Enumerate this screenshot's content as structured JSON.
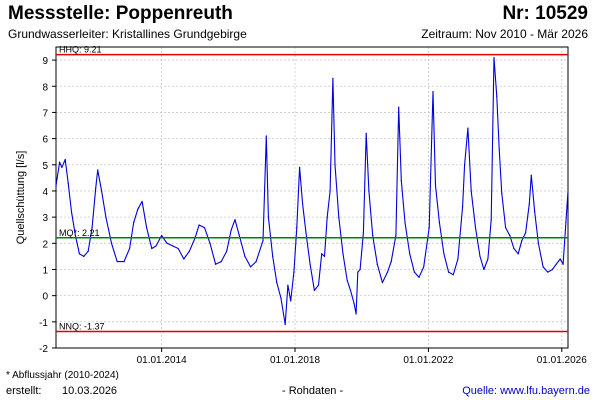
{
  "header": {
    "title": "Messstelle: Poppenreuth",
    "number": "Nr: 10529",
    "aquifer": "Grundwasserleiter: Kristallines Grundgebirge",
    "period": "Zeitraum: Nov 2010 - Mär 2026"
  },
  "footer": {
    "footnote": "* Abflussjahr (2010-2024)",
    "created_label": "erstellt:",
    "created_date": "10.03.2026",
    "rawdata": "- Rohdaten -",
    "source": "Quelle: www.lfu.bayern.de"
  },
  "colors": {
    "series": "#0000dd",
    "hhq_nnq": "#e00000",
    "mq": "#008000",
    "grid": "#c8c8c8"
  },
  "chart_data": {
    "type": "line",
    "title": "Messstelle: Poppenreuth",
    "xlabel": "",
    "ylabel": "Quellschüttung [l/s]",
    "xlim": [
      "2010-11-01",
      "2026-03-10"
    ],
    "ylim": [
      -2,
      9.5
    ],
    "yticks": [
      -2,
      -1,
      0,
      1,
      2,
      3,
      4,
      5,
      6,
      7,
      8,
      9
    ],
    "xticks": [
      "2014-01-01",
      "2018-01-01",
      "2022-01-01",
      "2026-01-01"
    ],
    "xtick_labels": [
      "01.01.2014",
      "01.01.2018",
      "01.01.2022",
      "01.01.2026"
    ],
    "grid": true,
    "reference_lines": [
      {
        "label": "HHQ: 9.21",
        "value": 9.21,
        "color": "#e00000"
      },
      {
        "label": "MQ*: 2.21",
        "value": 2.21,
        "color": "#008000"
      },
      {
        "label": "NNQ: -1.37",
        "value": -1.37,
        "color": "#e00000"
      }
    ],
    "series": [
      {
        "color": "#0000dd",
        "points": [
          [
            "2010-11-01",
            4.2
          ],
          [
            "2010-12-10",
            5.1
          ],
          [
            "2011-01-05",
            4.9
          ],
          [
            "2011-02-10",
            5.2
          ],
          [
            "2011-03-15",
            4.3
          ],
          [
            "2011-04-20",
            3.2
          ],
          [
            "2011-06-01",
            2.3
          ],
          [
            "2011-07-15",
            1.6
          ],
          [
            "2011-09-01",
            1.5
          ],
          [
            "2011-10-20",
            1.7
          ],
          [
            "2011-12-01",
            2.6
          ],
          [
            "2012-01-10",
            4.1
          ],
          [
            "2012-02-01",
            4.8
          ],
          [
            "2012-03-15",
            4.0
          ],
          [
            "2012-05-01",
            3.0
          ],
          [
            "2012-07-01",
            2.0
          ],
          [
            "2012-09-01",
            1.3
          ],
          [
            "2012-11-15",
            1.3
          ],
          [
            "2013-01-15",
            1.8
          ],
          [
            "2013-03-01",
            2.8
          ],
          [
            "2013-04-15",
            3.3
          ],
          [
            "2013-06-01",
            3.6
          ],
          [
            "2013-07-20",
            2.6
          ],
          [
            "2013-09-15",
            1.8
          ],
          [
            "2013-11-01",
            1.9
          ],
          [
            "2014-01-01",
            2.3
          ],
          [
            "2014-03-01",
            2.0
          ],
          [
            "2014-05-01",
            1.9
          ],
          [
            "2014-07-01",
            1.8
          ],
          [
            "2014-09-01",
            1.4
          ],
          [
            "2014-11-01",
            1.7
          ],
          [
            "2015-01-01",
            2.2
          ],
          [
            "2015-02-15",
            2.7
          ],
          [
            "2015-04-15",
            2.6
          ],
          [
            "2015-06-15",
            2.0
          ],
          [
            "2015-08-15",
            1.2
          ],
          [
            "2015-10-15",
            1.3
          ],
          [
            "2015-12-15",
            1.7
          ],
          [
            "2016-02-01",
            2.5
          ],
          [
            "2016-03-15",
            2.9
          ],
          [
            "2016-05-01",
            2.3
          ],
          [
            "2016-07-01",
            1.5
          ],
          [
            "2016-09-01",
            1.1
          ],
          [
            "2016-11-01",
            1.3
          ],
          [
            "2017-01-15",
            2.1
          ],
          [
            "2017-02-20",
            6.1
          ],
          [
            "2017-03-15",
            3.0
          ],
          [
            "2017-05-01",
            1.5
          ],
          [
            "2017-06-15",
            0.5
          ],
          [
            "2017-08-01",
            -0.1
          ],
          [
            "2017-09-15",
            -1.1
          ],
          [
            "2017-10-15",
            0.4
          ],
          [
            "2017-11-15",
            -0.2
          ],
          [
            "2017-12-20",
            0.9
          ],
          [
            "2018-01-20",
            2.6
          ],
          [
            "2018-02-20",
            4.9
          ],
          [
            "2018-03-25",
            3.5
          ],
          [
            "2018-05-01",
            2.4
          ],
          [
            "2018-06-15",
            1.2
          ],
          [
            "2018-08-01",
            0.2
          ],
          [
            "2018-09-15",
            0.4
          ],
          [
            "2018-10-20",
            1.6
          ],
          [
            "2018-11-20",
            1.5
          ],
          [
            "2018-12-20",
            3.0
          ],
          [
            "2019-01-20",
            4.0
          ],
          [
            "2019-02-20",
            8.3
          ],
          [
            "2019-03-15",
            5.0
          ],
          [
            "2019-04-25",
            3.0
          ],
          [
            "2019-06-10",
            1.6
          ],
          [
            "2019-07-25",
            0.6
          ],
          [
            "2019-09-01",
            0.2
          ],
          [
            "2019-10-10",
            -0.3
          ],
          [
            "2019-11-01",
            -0.7
          ],
          [
            "2019-11-20",
            0.9
          ],
          [
            "2019-12-15",
            1.0
          ],
          [
            "2020-01-20",
            2.4
          ],
          [
            "2020-02-20",
            6.2
          ],
          [
            "2020-03-20",
            4.0
          ],
          [
            "2020-05-01",
            2.3
          ],
          [
            "2020-06-20",
            1.2
          ],
          [
            "2020-08-15",
            0.5
          ],
          [
            "2020-10-10",
            0.9
          ],
          [
            "2020-11-20",
            1.3
          ],
          [
            "2021-01-10",
            2.3
          ],
          [
            "2021-02-10",
            7.2
          ],
          [
            "2021-03-10",
            4.4
          ],
          [
            "2021-04-20",
            2.8
          ],
          [
            "2021-06-10",
            1.6
          ],
          [
            "2021-08-01",
            0.9
          ],
          [
            "2021-09-20",
            0.7
          ],
          [
            "2021-11-10",
            1.1
          ],
          [
            "2022-01-10",
            2.6
          ],
          [
            "2022-02-20",
            7.8
          ],
          [
            "2022-03-20",
            4.2
          ],
          [
            "2022-05-01",
            2.8
          ],
          [
            "2022-06-20",
            1.6
          ],
          [
            "2022-08-10",
            0.9
          ],
          [
            "2022-10-01",
            0.8
          ],
          [
            "2022-11-20",
            1.4
          ],
          [
            "2023-01-10",
            3.4
          ],
          [
            "2023-02-01",
            5.0
          ],
          [
            "2023-03-10",
            6.4
          ],
          [
            "2023-04-15",
            4.0
          ],
          [
            "2023-06-01",
            2.6
          ],
          [
            "2023-07-20",
            1.5
          ],
          [
            "2023-09-01",
            1.0
          ],
          [
            "2023-10-15",
            1.4
          ],
          [
            "2023-11-20",
            2.9
          ],
          [
            "2023-12-20",
            9.1
          ],
          [
            "2024-01-20",
            7.6
          ],
          [
            "2024-02-15",
            5.6
          ],
          [
            "2024-03-15",
            3.9
          ],
          [
            "2024-04-25",
            2.6
          ],
          [
            "2024-06-10",
            2.3
          ],
          [
            "2024-07-25",
            1.8
          ],
          [
            "2024-09-10",
            1.6
          ],
          [
            "2024-10-20",
            2.1
          ],
          [
            "2024-12-01",
            2.4
          ],
          [
            "2025-01-10",
            3.5
          ],
          [
            "2025-02-01",
            4.6
          ],
          [
            "2025-03-10",
            3.2
          ],
          [
            "2025-04-20",
            2.0
          ],
          [
            "2025-06-10",
            1.1
          ],
          [
            "2025-08-01",
            0.9
          ],
          [
            "2025-09-20",
            1.0
          ],
          [
            "2025-11-01",
            1.2
          ],
          [
            "2025-12-15",
            1.4
          ],
          [
            "2026-01-15",
            1.2
          ],
          [
            "2026-02-15",
            2.8
          ],
          [
            "2026-03-10",
            4.0
          ]
        ]
      }
    ]
  }
}
